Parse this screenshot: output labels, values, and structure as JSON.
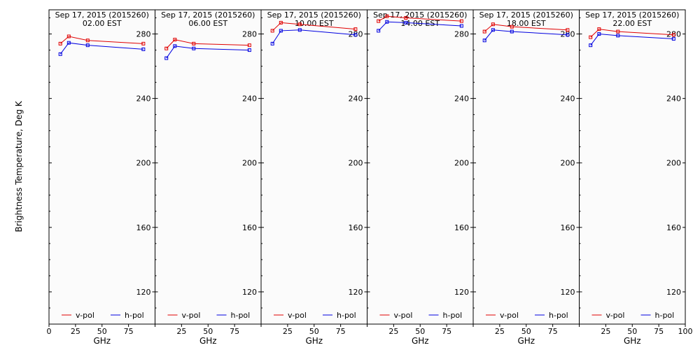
{
  "figure": {
    "ylabel": "Brightness Temperature, Deg K",
    "colors": {
      "v_pol": "#e00000",
      "h_pol": "#0000e0",
      "panel_bg": "#fbfbfb"
    }
  },
  "chart_data": [
    {
      "type": "line",
      "title": "Sep 17, 2015 (2015260)",
      "subtitle": "02.00 EST",
      "xlabel": "GHz",
      "ylabel": "Brightness Temperature, Deg K",
      "x": [
        10.7,
        18.7,
        36.5,
        89.0
      ],
      "xlim": [
        0,
        100
      ],
      "ylim": [
        100,
        295
      ],
      "xticks": [
        0,
        25,
        50,
        75,
        100
      ],
      "yticks": [
        120,
        160,
        200,
        240,
        280
      ],
      "legend": "bottom",
      "series": [
        {
          "name": "v-pol",
          "values": [
            274,
            278.5,
            276,
            274
          ]
        },
        {
          "name": "h-pol",
          "values": [
            267.5,
            274.5,
            273,
            270.5
          ]
        }
      ]
    },
    {
      "type": "line",
      "title": "Sep 17, 2015 (2015260)",
      "subtitle": "06.00 EST",
      "xlabel": "GHz",
      "ylabel": "Brightness Temperature, Deg K",
      "x": [
        10.7,
        18.7,
        36.5,
        89.0
      ],
      "xlim": [
        0,
        100
      ],
      "ylim": [
        100,
        295
      ],
      "xticks": [
        0,
        25,
        50,
        75,
        100
      ],
      "yticks": [
        120,
        160,
        200,
        240,
        280
      ],
      "legend": "bottom",
      "series": [
        {
          "name": "v-pol",
          "values": [
            271,
            276.5,
            274,
            273
          ]
        },
        {
          "name": "h-pol",
          "values": [
            265,
            272.5,
            271,
            270
          ]
        }
      ]
    },
    {
      "type": "line",
      "title": "Sep 17, 2015 (2015260)",
      "subtitle": "10.00 EST",
      "xlabel": "GHz",
      "ylabel": "Brightness Temperature, Deg K",
      "x": [
        10.7,
        18.7,
        36.5,
        89.0
      ],
      "xlim": [
        0,
        100
      ],
      "ylim": [
        100,
        295
      ],
      "xticks": [
        0,
        25,
        50,
        75,
        100
      ],
      "yticks": [
        120,
        160,
        200,
        240,
        280
      ],
      "legend": "bottom",
      "series": [
        {
          "name": "v-pol",
          "values": [
            282,
            287,
            286,
            283
          ]
        },
        {
          "name": "h-pol",
          "values": [
            274,
            282,
            282.5,
            279.5
          ]
        }
      ]
    },
    {
      "type": "line",
      "title": "Sep 17, 2015 (2015260)",
      "subtitle": "14.00 EST",
      "xlabel": "GHz",
      "ylabel": "Brightness Temperature, Deg K",
      "x": [
        10.7,
        18.7,
        36.5,
        89.0
      ],
      "xlim": [
        0,
        100
      ],
      "ylim": [
        100,
        295
      ],
      "xticks": [
        0,
        25,
        50,
        75,
        100
      ],
      "yticks": [
        120,
        160,
        200,
        240,
        280
      ],
      "legend": "bottom",
      "series": [
        {
          "name": "v-pol",
          "values": [
            288,
            291,
            290,
            288
          ]
        },
        {
          "name": "h-pol",
          "values": [
            282,
            287.5,
            287,
            285
          ]
        }
      ]
    },
    {
      "type": "line",
      "title": "Sep 17, 2015 (2015260)",
      "subtitle": "18.00 EST",
      "xlabel": "GHz",
      "ylabel": "Brightness Temperature, Deg K",
      "x": [
        10.7,
        18.7,
        36.5,
        89.0
      ],
      "xlim": [
        0,
        100
      ],
      "ylim": [
        100,
        295
      ],
      "xticks": [
        0,
        25,
        50,
        75,
        100
      ],
      "yticks": [
        120,
        160,
        200,
        240,
        280
      ],
      "legend": "bottom",
      "series": [
        {
          "name": "v-pol",
          "values": [
            281.5,
            286,
            284.5,
            282.5
          ]
        },
        {
          "name": "h-pol",
          "values": [
            276,
            282.5,
            281.5,
            279.5
          ]
        }
      ]
    },
    {
      "type": "line",
      "title": "Sep 17, 2015 (2015260)",
      "subtitle": "22.00 EST",
      "xlabel": "GHz",
      "ylabel": "Brightness Temperature, Deg K",
      "x": [
        10.7,
        18.7,
        36.5,
        89.0
      ],
      "xlim": [
        0,
        100
      ],
      "ylim": [
        100,
        295
      ],
      "xticks": [
        0,
        25,
        50,
        75,
        100
      ],
      "yticks": [
        120,
        160,
        200,
        240,
        280
      ],
      "legend": "bottom",
      "series": [
        {
          "name": "v-pol",
          "values": [
            278,
            283,
            281.5,
            279.5
          ]
        },
        {
          "name": "h-pol",
          "values": [
            273,
            280,
            279,
            277
          ]
        }
      ]
    }
  ]
}
